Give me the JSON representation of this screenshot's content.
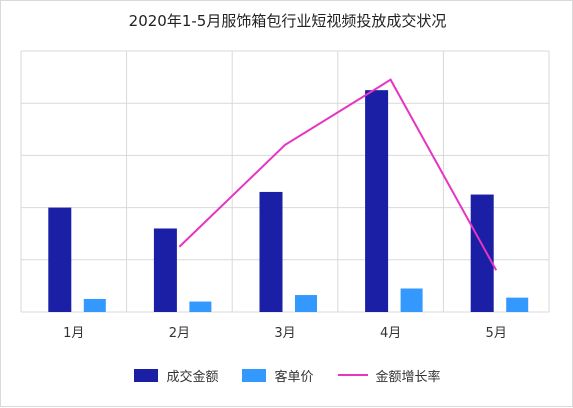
{
  "colors": {
    "series_bar_1": "#1a1fa6",
    "series_bar_2": "#3399ff",
    "series_line": "#e535c2",
    "grid": "#d9d9d9"
  },
  "chart_data": {
    "type": "bar",
    "title": "2020年1-5月服饰箱包行业短视频投放成交状况",
    "categories": [
      "1月",
      "2月",
      "3月",
      "4月",
      "5月"
    ],
    "xlabel": "",
    "ylabel": "",
    "ylim": [
      0,
      100
    ],
    "y_ticks_labeled": false,
    "grid": true,
    "legend_position": "bottom",
    "series": [
      {
        "name": "成交金额",
        "type": "bar",
        "values": [
          40,
          32,
          46,
          85,
          45
        ]
      },
      {
        "name": "客单价",
        "type": "bar",
        "values": [
          5,
          4,
          6.5,
          9,
          5.5
        ]
      },
      {
        "name": "金额增长率",
        "type": "line",
        "values": [
          null,
          25,
          64,
          89,
          16
        ]
      }
    ]
  }
}
